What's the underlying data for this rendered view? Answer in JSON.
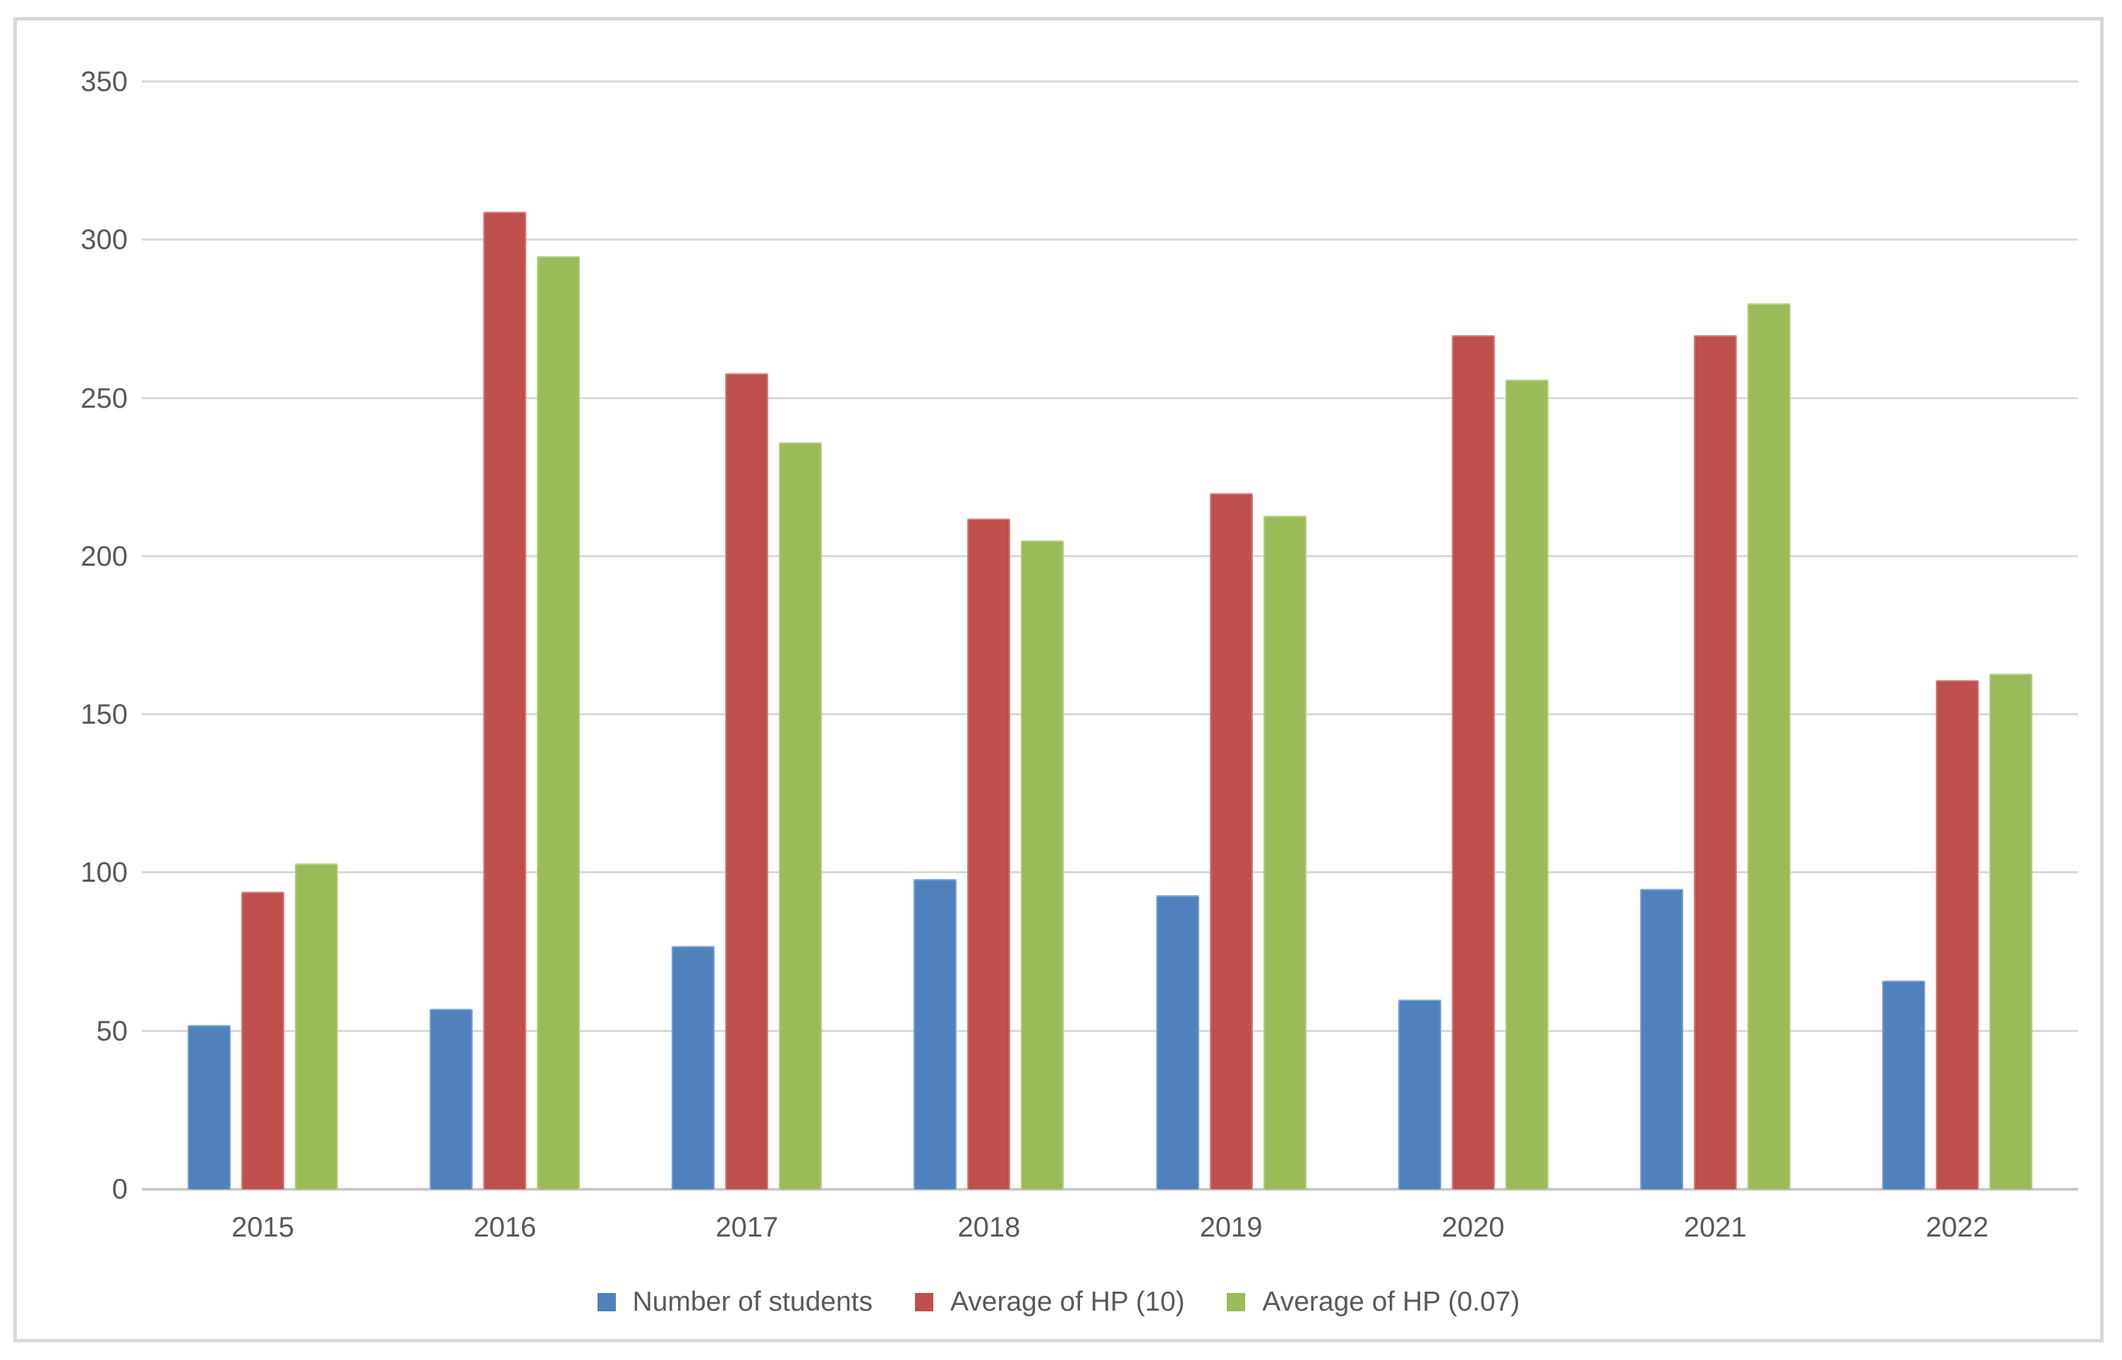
{
  "chart_data": {
    "type": "bar",
    "title": "",
    "categories": [
      "2015",
      "2016",
      "2017",
      "2018",
      "2019",
      "2020",
      "2021",
      "2022"
    ],
    "series": [
      {
        "name": "Number of students",
        "color": "#4F81BD",
        "values": [
          52,
          57,
          77,
          98,
          93,
          60,
          95,
          66
        ]
      },
      {
        "name": "Average of HP (10)",
        "color": "#C0504D",
        "values": [
          94,
          309,
          258,
          212,
          220,
          270,
          270,
          161
        ]
      },
      {
        "name": "Average of HP (0.07)",
        "color": "#9BBB59",
        "values": [
          103,
          295,
          236,
          205,
          213,
          256,
          280,
          163
        ]
      }
    ],
    "xlabel": "",
    "ylabel": "",
    "ylim": [
      0,
      350
    ],
    "yticks": [
      0,
      50,
      100,
      150,
      200,
      250,
      300,
      350
    ],
    "grid": true,
    "gridline_color": "#D9D9D9",
    "axis_line_color": "#C9C9C9",
    "text_color": "#595959",
    "frame_border_color": "#D9D9D9",
    "background": "#FFFFFF",
    "legend_position": "bottom"
  }
}
